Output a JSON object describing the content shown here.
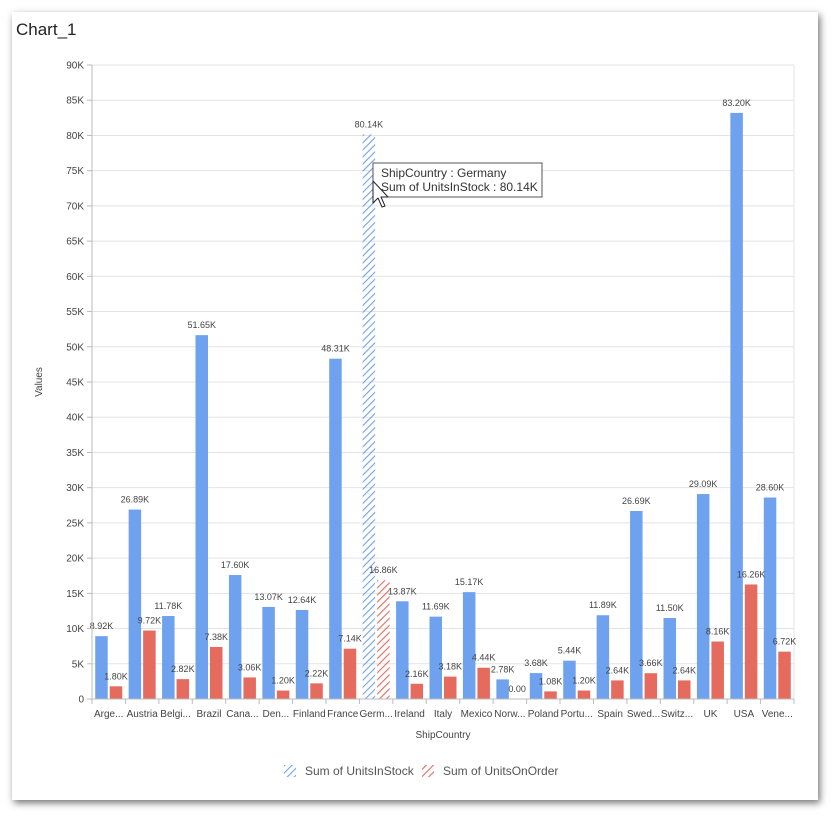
{
  "window": {
    "title": "Chart_1"
  },
  "colors": {
    "series1": "#6fa2ee",
    "series2": "#e46b5d",
    "grid": "#e3e3e3",
    "axis": "#bbbbbb"
  },
  "chart_data": {
    "type": "bar",
    "title": "Chart_1",
    "xlabel": "ShipCountry",
    "ylabel": "Values",
    "ylim": [
      0,
      90000
    ],
    "ytick_step": 5000,
    "ytick_labels": [
      "0",
      "5K",
      "10K",
      "15K",
      "20K",
      "25K",
      "30K",
      "35K",
      "40K",
      "45K",
      "50K",
      "55K",
      "60K",
      "65K",
      "70K",
      "75K",
      "80K",
      "85K",
      "90K"
    ],
    "grid": true,
    "legend_position": "bottom",
    "categories": [
      "Arge...",
      "Austria",
      "Belgi...",
      "Brazil",
      "Cana...",
      "Den...",
      "Finland",
      "France",
      "Germ...",
      "Ireland",
      "Italy",
      "Mexico",
      "Norw...",
      "Poland",
      "Portu...",
      "Spain",
      "Swed...",
      "Switz...",
      "UK",
      "USA",
      "Vene..."
    ],
    "series": [
      {
        "name": "Sum of UnitsInStock",
        "values": [
          8920,
          26890,
          11780,
          51650,
          17600,
          13070,
          12640,
          48310,
          80140,
          13870,
          11690,
          15170,
          2780,
          3680,
          5440,
          11890,
          26690,
          11500,
          29090,
          83200,
          28600
        ],
        "labels": [
          "8.92K",
          "26.89K",
          "11.78K",
          "51.65K",
          "17.60K",
          "13.07K",
          "12.64K",
          "48.31K",
          "80.14K",
          "13.87K",
          "11.69K",
          "15.17K",
          "2.78K",
          "3.68K",
          "5.44K",
          "11.89K",
          "26.69K",
          "11.50K",
          "29.09K",
          "83.20K",
          "28.60K"
        ]
      },
      {
        "name": "Sum of UnitsOnOrder",
        "values": [
          1800,
          9720,
          2820,
          7380,
          3060,
          1200,
          2220,
          7140,
          16860,
          2160,
          3180,
          4440,
          0,
          1080,
          1200,
          2640,
          3660,
          2640,
          8160,
          16260,
          6720
        ],
        "labels": [
          "1.80K",
          "9.72K",
          "2.82K",
          "7.38K",
          "3.06K",
          "1.20K",
          "2.22K",
          "7.14K",
          "16.86K",
          "2.16K",
          "3.18K",
          "4.44K",
          "0.00",
          "1.08K",
          "1.20K",
          "2.64K",
          "3.66K",
          "2.64K",
          "8.16K",
          "16.26K",
          "6.72K"
        ]
      }
    ],
    "highlight_index": 8,
    "tooltip": {
      "line1": "ShipCountry : Germany",
      "line2": "Sum of UnitsInStock : 80.14K"
    }
  }
}
